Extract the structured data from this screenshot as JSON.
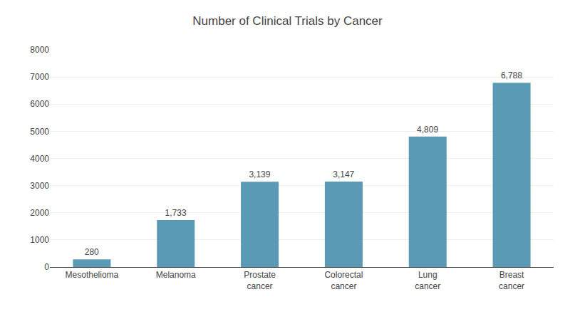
{
  "chart_data": {
    "type": "bar",
    "title": "Number of Clinical Trials by Cancer",
    "categories": [
      "Mesothelioma",
      "Melanoma",
      "Prostate\ncancer",
      "Colorectal\ncancer",
      "Lung\ncancer",
      "Breast\ncancer"
    ],
    "values": [
      280,
      1733,
      3139,
      3147,
      4809,
      6788
    ],
    "value_labels": [
      "280",
      "1,733",
      "3,139",
      "3,147",
      "4,809",
      "6,788"
    ],
    "data_labels": true,
    "color": "#5b9ab5",
    "ylim": [
      0,
      8000
    ],
    "yticks": [
      0,
      1000,
      2000,
      3000,
      4000,
      5000,
      6000,
      7000,
      8000
    ],
    "grid": true
  }
}
